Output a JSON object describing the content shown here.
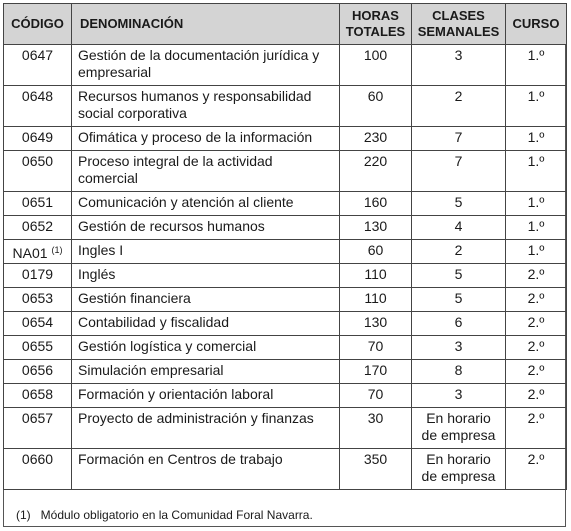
{
  "table": {
    "headers": [
      "CÓDIGO",
      "DENOMINACIÓN",
      "HORAS TOTALES",
      "CLASES SEMANALES",
      "CURSO"
    ],
    "rows": [
      {
        "code": "0647",
        "name": "Gestión de la documentación jurídica y empresarial",
        "hours": "100",
        "classes": "3",
        "course": "1.º"
      },
      {
        "code": "0648",
        "name": "Recursos humanos y responsabilidad social corporativa",
        "hours": "60",
        "classes": "2",
        "course": "1.º"
      },
      {
        "code": "0649",
        "name": "Ofimática y proceso de la información",
        "hours": "230",
        "classes": "7",
        "course": "1.º"
      },
      {
        "code": "0650",
        "name": "Proceso integral de la actividad comercial",
        "hours": "220",
        "classes": "7",
        "course": "1.º"
      },
      {
        "code": "0651",
        "name": "Comunicación y atención al cliente",
        "hours": "160",
        "classes": "5",
        "course": "1.º"
      },
      {
        "code": "0652",
        "name": "Gestión de recursos humanos",
        "hours": "130",
        "classes": "4",
        "course": "1.º"
      },
      {
        "code": "NA01",
        "note": "(1)",
        "name": "Ingles I",
        "hours": "60",
        "classes": "2",
        "course": "1.º"
      },
      {
        "code": "0179",
        "name": "Inglés",
        "hours": "110",
        "classes": "5",
        "course": "2.º"
      },
      {
        "code": "0653",
        "name": "Gestión financiera",
        "hours": "110",
        "classes": "5",
        "course": "2.º"
      },
      {
        "code": "0654",
        "name": "Contabilidad y fiscalidad",
        "hours": "130",
        "classes": "6",
        "course": "2.º"
      },
      {
        "code": "0655",
        "name": "Gestión logística y comercial",
        "hours": "70",
        "classes": "3",
        "course": "2.º"
      },
      {
        "code": "0656",
        "name": "Simulación empresarial",
        "hours": "170",
        "classes": "8",
        "course": "2.º"
      },
      {
        "code": "0658",
        "name": "Formación y orientación laboral",
        "hours": "70",
        "classes": "3",
        "course": "2.º"
      },
      {
        "code": "0657",
        "name": "Proyecto de administración y finanzas",
        "hours": "30",
        "classes": "En horario de empresa",
        "course": "2.º"
      },
      {
        "code": "0660",
        "name": "Formación en Centros de trabajo",
        "hours": "350",
        "classes": "En horario de empresa",
        "course": "2.º"
      }
    ]
  },
  "footnote": "(1)   Módulo obligatorio en la Comunidad Foral Navarra."
}
